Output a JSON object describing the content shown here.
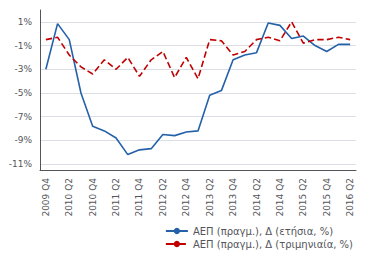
{
  "chart_data": {
    "type": "line",
    "categories": [
      "2009 Q4",
      null,
      "2010 Q2",
      null,
      "2010 Q4",
      null,
      "2011 Q2",
      null,
      "2011 Q4",
      null,
      "2012 Q2",
      null,
      "2012 Q4",
      null,
      "2013 Q2",
      null,
      "2013 Q4",
      null,
      "2014 Q2",
      null,
      "2014 Q4",
      null,
      "2015 Q2",
      null,
      "2015 Q4",
      null,
      "2016 Q2"
    ],
    "series": [
      {
        "name": "ΑΕΠ (πραγμ.), Δ (ετήσια, %)",
        "color": "#2461A9",
        "line_style": "solid",
        "values": [
          -3.0,
          0.85,
          -0.5,
          -5.0,
          -7.8,
          -8.2,
          -8.8,
          -10.2,
          -9.8,
          -9.7,
          -8.5,
          -8.6,
          -8.3,
          -8.2,
          -5.2,
          -4.8,
          -2.2,
          -1.8,
          -1.6,
          0.9,
          0.7,
          -0.4,
          -0.2,
          -1.0,
          -1.5,
          -0.9,
          -0.9
        ]
      },
      {
        "name": "ΑΕΠ (πραγμ.), Δ (τριμηνιαία, %)",
        "color": "#C00000",
        "line_style": "dashed",
        "values": [
          -0.5,
          -0.3,
          -1.8,
          -2.8,
          -3.4,
          -2.2,
          -3.0,
          -2.0,
          -3.6,
          -2.2,
          -1.5,
          -3.7,
          -2.0,
          -3.8,
          -0.5,
          -0.6,
          -1.8,
          -1.5,
          -0.5,
          -0.3,
          -0.6,
          1.0,
          -0.8,
          -0.5,
          -0.5,
          -0.3,
          -0.5
        ]
      }
    ],
    "ylim": [
      -11.5,
      2.0
    ],
    "yticks": [
      {
        "value": 1,
        "label": "1%"
      },
      {
        "value": -1,
        "label": "-1%"
      },
      {
        "value": -3,
        "label": "-3%"
      },
      {
        "value": -5,
        "label": "-5%"
      },
      {
        "value": -7,
        "label": "-7%"
      },
      {
        "value": -9,
        "label": "-9%"
      },
      {
        "value": -11,
        "label": "-11%"
      }
    ],
    "grid": true,
    "legend": "lower right"
  }
}
